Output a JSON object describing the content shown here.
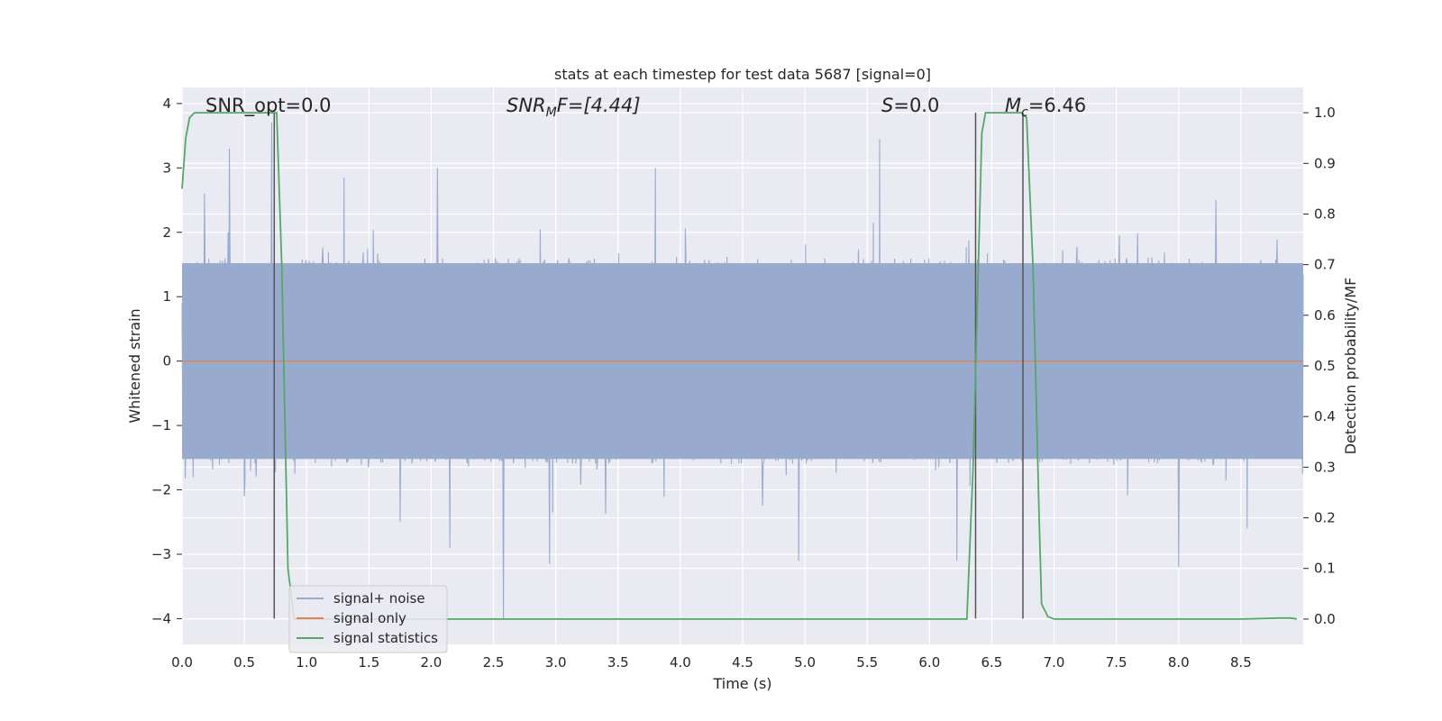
{
  "chart_data": {
    "type": "line",
    "title": "stats at each timestep for test data 5687 [signal=0]",
    "xlabel": "Time (s)",
    "ylabel": "Whitened strain",
    "ylabel_right": "Detection probability/MF",
    "xlim": [
      0.0,
      9.0
    ],
    "ylim": [
      -4.4,
      4.25
    ],
    "ylim_right": [
      -0.05,
      1.05
    ],
    "x_ticks": [
      "0.0",
      "0.5",
      "1.0",
      "1.5",
      "2.0",
      "2.5",
      "3.0",
      "3.5",
      "4.0",
      "4.5",
      "5.0",
      "5.5",
      "6.0",
      "6.5",
      "7.0",
      "7.5",
      "8.0",
      "8.5"
    ],
    "y_ticks": [
      "4",
      "3",
      "2",
      "1",
      "0",
      "−1",
      "−2",
      "−3",
      "−4"
    ],
    "y_right_ticks": [
      "1.0",
      "0.9",
      "0.8",
      "0.7",
      "0.6",
      "0.5",
      "0.4",
      "0.3",
      "0.2",
      "0.1",
      "0.0"
    ],
    "grid": true,
    "legend_position": "lower-left",
    "annotations": {
      "snr_opt": "SNR_opt=0.0",
      "snr_mf_base": "SNR",
      "snr_mf_sub": "M",
      "snr_mf_rest": "F=[4.44]",
      "s_label": "S",
      "s_value": "=0.0",
      "mc_base": "M",
      "mc_sub": "c",
      "mc_value": "=6.46"
    },
    "series": [
      {
        "name": "signal+ noise",
        "color": "#99aacf",
        "description_values": "whitened noisy strain, roughly uniform band between about -1.6 and 1.6 with spikes to about ±3.5",
        "envelope_typical": [
          -1.6,
          1.6
        ],
        "spikes": [
          [
            0.18,
            2.6
          ],
          [
            0.38,
            3.3
          ],
          [
            0.72,
            3.7
          ],
          [
            1.3,
            2.85
          ],
          [
            2.05,
            3.0
          ],
          [
            3.8,
            3.0
          ],
          [
            5.6,
            3.45
          ],
          [
            8.3,
            2.5
          ],
          [
            0.5,
            -2.1
          ],
          [
            1.75,
            -2.5
          ],
          [
            2.15,
            -2.9
          ],
          [
            2.58,
            -4.0
          ],
          [
            2.95,
            -3.15
          ],
          [
            4.95,
            -3.1
          ],
          [
            6.22,
            -3.1
          ],
          [
            8.0,
            -3.2
          ],
          [
            8.55,
            -2.6
          ]
        ]
      },
      {
        "name": "signal only",
        "color": "#dd8452",
        "x": [
          0.0,
          9.0
        ],
        "y": [
          0.0,
          0.0
        ]
      },
      {
        "name": "signal statistics",
        "color": "#55a868",
        "axis": "right",
        "x": [
          0.0,
          0.03,
          0.06,
          0.1,
          0.15,
          0.5,
          0.7,
          0.76,
          0.8,
          0.85,
          0.9,
          0.95,
          1.0,
          6.3,
          6.35,
          6.42,
          6.45,
          6.5,
          6.74,
          6.78,
          6.83,
          6.88,
          6.9,
          6.95,
          7.0,
          7.1,
          8.5,
          8.8,
          8.9,
          8.95
        ],
        "y": [
          0.85,
          0.95,
          0.99,
          1.0,
          1.0,
          1.0,
          1.0,
          1.0,
          0.7,
          0.1,
          0.0,
          0.0,
          0.0,
          0.0,
          0.3,
          0.96,
          1.0,
          1.0,
          1.0,
          0.99,
          0.7,
          0.2,
          0.03,
          0.005,
          0.0,
          0.0,
          0.0,
          0.002,
          0.002,
          0.0
        ]
      }
    ],
    "vertical_markers": {
      "color": "#555555",
      "x": [
        0.74,
        6.37,
        6.75
      ]
    }
  }
}
